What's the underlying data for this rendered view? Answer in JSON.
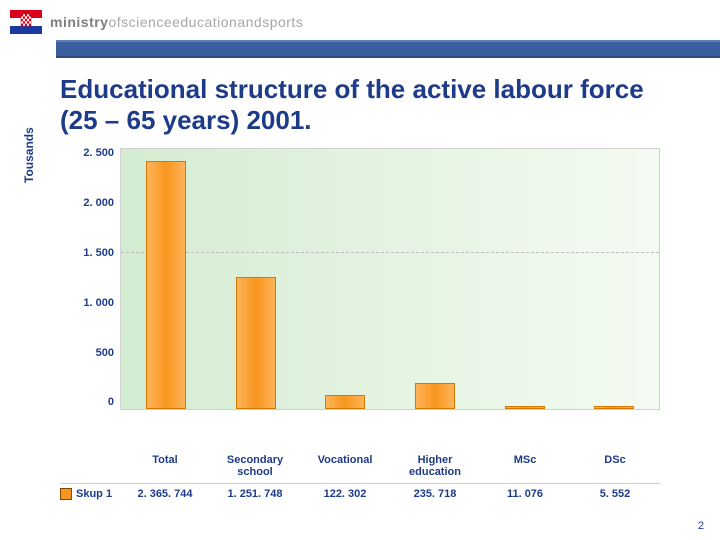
{
  "header": {
    "ministry_prefix": "ministry",
    "ministry_rest": "ofscienceeducationandsports",
    "bar_color": "#3a5e9e",
    "bar_border_top": "#5f7fb5",
    "bar_border_bottom": "#2b4a83"
  },
  "title": "Educational structure of the active labour force (25 – 65 years) 2001.",
  "chart": {
    "type": "bar",
    "ylabel": "Tousands",
    "ylim": [
      0,
      2500
    ],
    "ytick_step": 500,
    "ytick_labels": [
      "2. 500",
      "2. 000",
      "1. 500",
      "1. 000",
      "500",
      "0"
    ],
    "dashed_line_at": 1500,
    "background_gradient": [
      "#d4ecd1",
      "#f4fbf2"
    ],
    "grid_dash_color": "#bdbdbd",
    "bar_gradient": [
      "#ffb45a",
      "#f8961f",
      "#ffb45a"
    ],
    "bar_border": "#d67700",
    "bar_width": 0.4,
    "categories": [
      "Total",
      "Secondary school",
      "Vocational",
      "Higher education",
      "MSc",
      "DSc"
    ],
    "values": [
      2365.744,
      1251.748,
      122.302,
      235.718,
      11.076,
      5.552
    ],
    "value_labels": [
      "2. 365. 744",
      "1. 251. 748",
      "122. 302",
      "235. 718",
      "11. 076",
      "5. 552"
    ],
    "series_name": "Skup 1",
    "label_fontsize": 11,
    "text_color": "#1e3b8a"
  },
  "page_number": "2"
}
